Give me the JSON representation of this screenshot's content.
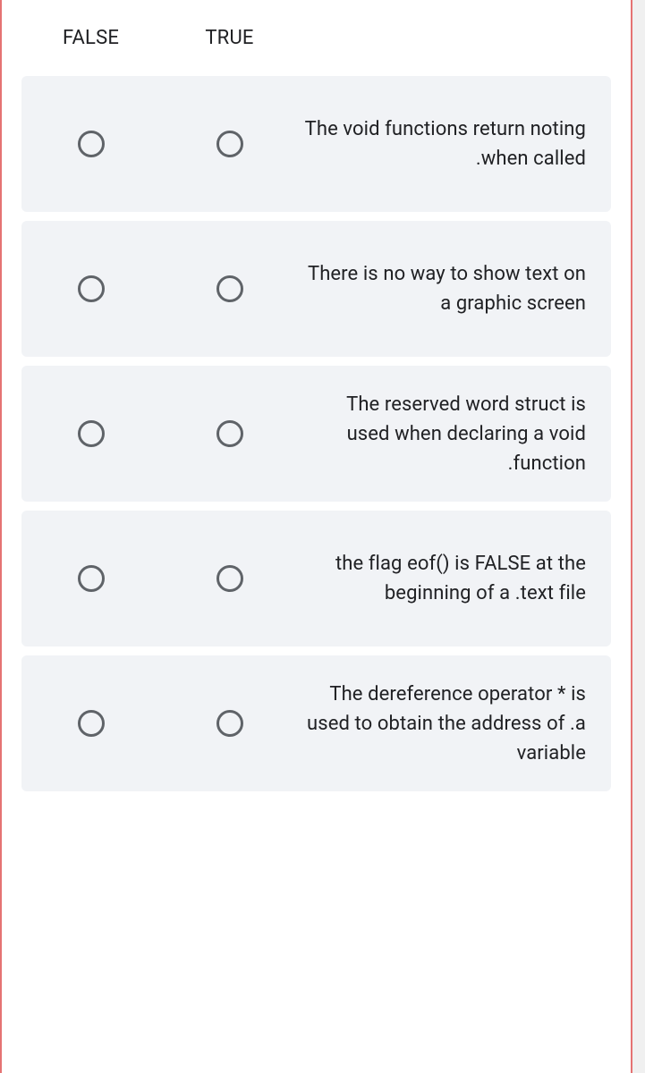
{
  "headers": {
    "col1": "FALSE",
    "col2": "TRUE"
  },
  "questions": [
    {
      "text": "The void functions return noting .when called"
    },
    {
      "text": "There is no way to show text on a graphic screen"
    },
    {
      "text": "The reserved word struct is used when declaring a void .function"
    },
    {
      "text": "the flag eof() is FALSE at the beginning of a .text file"
    },
    {
      "text": "The dereference operator * is used to obtain the address of .a variable"
    }
  ],
  "colors": {
    "border": "#e57373",
    "row_bg": "#f1f3f6",
    "radio_border": "#5f6368",
    "text": "#202124"
  }
}
